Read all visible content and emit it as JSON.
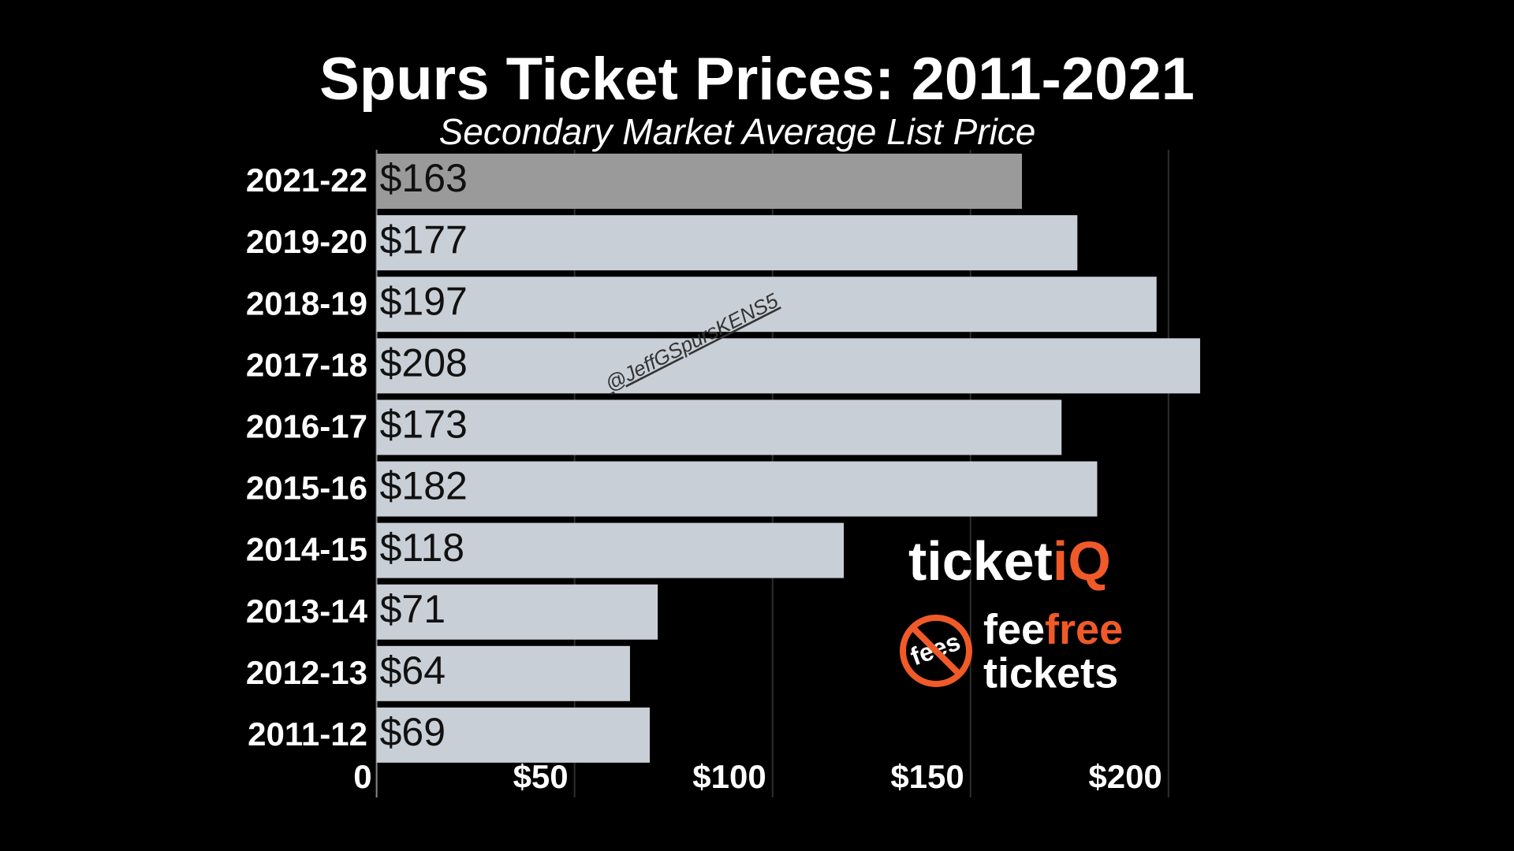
{
  "chart_data": {
    "type": "hbar",
    "title": "Spurs Ticket Prices: 2011-2021",
    "subtitle": "Secondary Market Average List Price",
    "categories": [
      "2021-22",
      "2019-20",
      "2018-19",
      "2017-18",
      "2016-17",
      "2015-16",
      "2014-15",
      "2013-14",
      "2012-13",
      "2011-12"
    ],
    "values": [
      163,
      177,
      197,
      208,
      173,
      182,
      118,
      71,
      64,
      69
    ],
    "value_labels": [
      "$163",
      "$177",
      "$197",
      "$208",
      "$173",
      "$182",
      "$118",
      "$71",
      "$64",
      "$69"
    ],
    "colors": [
      "#9a9a9a",
      "#c9cfd6",
      "#c9cfd6",
      "#c9cfd6",
      "#c9cfd6",
      "#c9cfd6",
      "#c9cfd6",
      "#c9cfd6",
      "#c9cfd6",
      "#c9cfd6"
    ],
    "xlim": [
      0,
      220
    ],
    "xticks": [
      0,
      {
        "value": 50,
        "label": "$50"
      },
      {
        "value": 100,
        "label": "$100"
      },
      {
        "value": 150,
        "label": "$150"
      },
      {
        "value": 200,
        "label": "$200"
      }
    ],
    "grid": true,
    "watermark": "@JeffGSpursKENS5",
    "logo": {
      "ticket": "ticket",
      "iq": "iQ",
      "fees": "fees",
      "fee": "fee",
      "free": "free",
      "tickets": "tickets"
    }
  }
}
